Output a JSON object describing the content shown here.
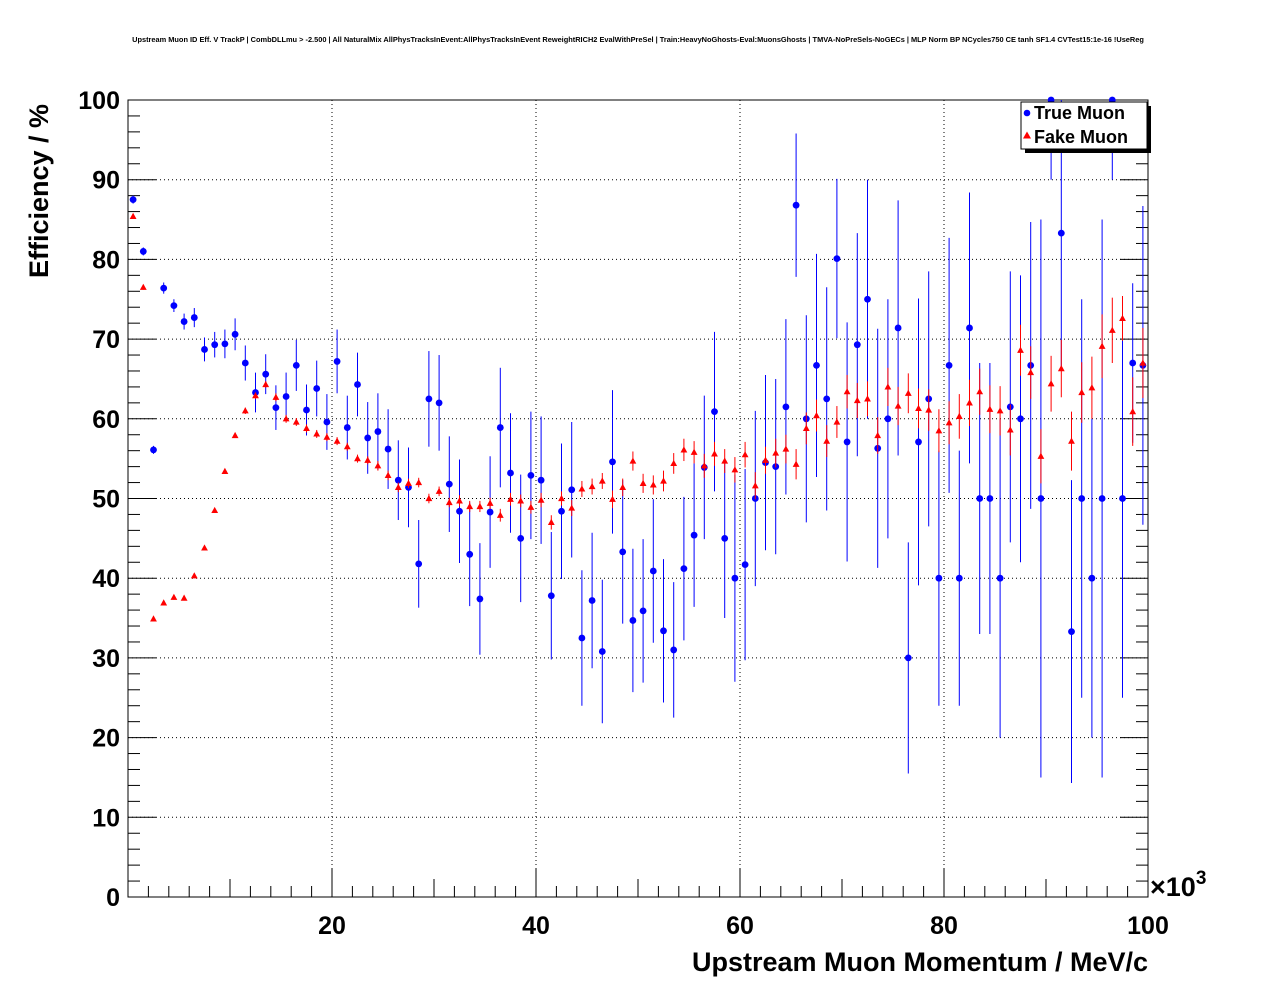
{
  "chart_data": {
    "type": "scatter",
    "title": "Upstream Muon ID Eff. V TrackP | CombDLLmu > -2.500 | All NaturalMix AllPhysTracksInEvent:AllPhysTracksInEvent ReweightRICH2 EvalWithPreSel | Train:HeavyNoGhosts-Eval:MuonsGhosts | TMVA-NoPreSels-NoGECs | MLP Norm BP NCycles750 CE tanh SF1.4 CVTest15:1e-16 !UseReg",
    "xlabel": "Upstream Muon Momentum / MeV/c",
    "ylabel": "Efficiency / %",
    "x_scale_label": "×10",
    "x_scale_exponent": "3",
    "xlim": [
      0,
      100
    ],
    "ylim": [
      0,
      100
    ],
    "x_ticks": [
      20,
      40,
      60,
      80,
      100
    ],
    "y_ticks": [
      0,
      10,
      20,
      30,
      40,
      50,
      60,
      70,
      80,
      90,
      100
    ],
    "x_tick_labels": [
      "20",
      "40",
      "60",
      "80",
      "100"
    ],
    "y_tick_labels": [
      "0",
      "10",
      "20",
      "30",
      "40",
      "50",
      "60",
      "70",
      "80",
      "90",
      "100"
    ],
    "grid": true,
    "legend_position": "top-right",
    "series": [
      {
        "name": "True Muon",
        "color": "#0000ff",
        "marker": "circle",
        "points": [
          [
            0.5,
            87.5,
            0.5
          ],
          [
            1.5,
            81.0,
            0.5
          ],
          [
            2.5,
            56.1,
            0.5
          ],
          [
            3.5,
            76.4,
            0.7
          ],
          [
            4.5,
            74.2,
            0.8
          ],
          [
            5.5,
            72.2,
            1.0
          ],
          [
            6.5,
            72.7,
            1.2
          ],
          [
            7.5,
            68.7,
            1.5
          ],
          [
            8.5,
            69.3,
            1.6
          ],
          [
            9.5,
            69.4,
            1.8
          ],
          [
            10.5,
            70.6,
            2.0
          ],
          [
            11.5,
            67.0,
            2.2
          ],
          [
            12.5,
            63.3,
            2.5
          ],
          [
            13.5,
            65.6,
            2.5
          ],
          [
            14.5,
            61.4,
            2.8
          ],
          [
            15.5,
            62.8,
            3.0
          ],
          [
            16.5,
            66.7,
            3.2
          ],
          [
            17.5,
            61.1,
            3.2
          ],
          [
            18.5,
            63.8,
            3.5
          ],
          [
            19.5,
            59.6,
            3.5
          ],
          [
            20.5,
            67.2,
            4.0
          ],
          [
            21.5,
            58.9,
            4.0
          ],
          [
            22.5,
            64.3,
            4.0
          ],
          [
            23.5,
            57.6,
            4.5
          ],
          [
            24.5,
            58.4,
            4.8
          ],
          [
            25.5,
            56.2,
            5.0
          ],
          [
            26.5,
            52.3,
            5.0
          ],
          [
            27.5,
            51.4,
            5.0
          ],
          [
            28.5,
            41.8,
            5.5
          ],
          [
            29.5,
            62.5,
            6.0
          ],
          [
            30.5,
            62.0,
            6.0
          ],
          [
            31.5,
            51.8,
            6.0
          ],
          [
            32.5,
            48.4,
            6.5
          ],
          [
            33.5,
            43.0,
            6.5
          ],
          [
            34.5,
            37.4,
            7.0
          ],
          [
            35.5,
            48.3,
            7.0
          ],
          [
            36.5,
            58.9,
            7.5
          ],
          [
            37.5,
            53.2,
            7.5
          ],
          [
            38.5,
            45.0,
            8.0
          ],
          [
            39.5,
            52.9,
            8.0
          ],
          [
            40.5,
            52.3,
            8.0
          ],
          [
            41.5,
            37.8,
            8.0
          ],
          [
            42.5,
            48.4,
            8.5
          ],
          [
            43.5,
            51.1,
            8.5
          ],
          [
            44.5,
            32.5,
            8.5
          ],
          [
            45.5,
            37.2,
            8.5
          ],
          [
            46.5,
            30.8,
            9.0
          ],
          [
            47.5,
            54.6,
            9.0
          ],
          [
            48.5,
            43.3,
            9.0
          ],
          [
            49.5,
            34.7,
            9.0
          ],
          [
            50.5,
            35.9,
            9.0
          ],
          [
            51.5,
            40.9,
            9.0
          ],
          [
            52.5,
            33.4,
            9.0
          ],
          [
            53.5,
            31.0,
            8.5
          ],
          [
            54.5,
            41.2,
            9.0
          ],
          [
            55.5,
            45.4,
            9.0
          ],
          [
            56.5,
            53.9,
            9.0
          ],
          [
            57.5,
            60.9,
            10.0
          ],
          [
            58.5,
            45.0,
            10.0
          ],
          [
            59.5,
            40.0,
            13.0
          ],
          [
            60.5,
            41.7,
            12.0
          ],
          [
            61.5,
            50.0,
            11.0
          ],
          [
            62.5,
            54.5,
            11.0
          ],
          [
            63.5,
            54.0,
            11.0
          ],
          [
            64.5,
            61.5,
            11.0
          ],
          [
            65.5,
            86.8,
            9.0
          ],
          [
            66.5,
            60.0,
            13.0
          ],
          [
            67.5,
            66.7,
            14.0
          ],
          [
            68.5,
            62.5,
            14.0
          ],
          [
            69.5,
            80.1,
            10.0
          ],
          [
            70.5,
            57.1,
            15.0
          ],
          [
            71.5,
            69.3,
            14.0
          ],
          [
            72.5,
            75.0,
            15.0
          ],
          [
            73.5,
            56.3,
            15.0
          ],
          [
            74.5,
            60.0,
            15.0
          ],
          [
            75.5,
            71.4,
            16.0
          ],
          [
            76.5,
            30.0,
            14.5
          ],
          [
            77.5,
            57.1,
            18.0
          ],
          [
            78.5,
            62.5,
            16.0
          ],
          [
            79.5,
            40.0,
            16.0
          ],
          [
            80.5,
            66.7,
            16.0
          ],
          [
            81.5,
            40.0,
            16.0
          ],
          [
            82.5,
            71.4,
            17.0
          ],
          [
            83.5,
            50.0,
            17.0
          ],
          [
            84.5,
            50.0,
            17.0
          ],
          [
            85.5,
            40.0,
            20.0
          ],
          [
            86.5,
            61.5,
            17.0
          ],
          [
            87.5,
            60.0,
            18.0
          ],
          [
            88.5,
            66.7,
            18.0
          ],
          [
            89.5,
            50.0,
            35.0
          ],
          [
            90.5,
            100.0,
            10.0
          ],
          [
            91.5,
            83.3,
            17.0
          ],
          [
            92.5,
            33.3,
            19.0
          ],
          [
            93.5,
            50.0,
            25.0
          ],
          [
            94.5,
            40.0,
            20.0
          ],
          [
            95.5,
            50.0,
            35.0
          ],
          [
            96.5,
            100.0,
            10.0
          ],
          [
            97.5,
            50.0,
            25.0
          ],
          [
            98.5,
            67.0,
            10.0
          ],
          [
            99.5,
            66.7,
            20.0
          ]
        ]
      },
      {
        "name": "Fake Muon",
        "color": "#ff0000",
        "marker": "triangle",
        "points": [
          [
            0.5,
            85.4,
            0.3
          ],
          [
            1.5,
            76.5,
            0.3
          ],
          [
            2.5,
            34.9,
            0.3
          ],
          [
            3.5,
            36.9,
            0.3
          ],
          [
            4.5,
            37.6,
            0.3
          ],
          [
            5.5,
            37.5,
            0.3
          ],
          [
            6.5,
            40.3,
            0.3
          ],
          [
            7.5,
            43.8,
            0.3
          ],
          [
            8.5,
            48.5,
            0.3
          ],
          [
            9.5,
            53.4,
            0.3
          ],
          [
            10.5,
            57.9,
            0.3
          ],
          [
            11.5,
            61.0,
            0.4
          ],
          [
            12.5,
            62.9,
            0.4
          ],
          [
            13.5,
            64.3,
            0.4
          ],
          [
            14.5,
            62.7,
            0.5
          ],
          [
            15.5,
            60.0,
            0.5
          ],
          [
            16.5,
            59.6,
            0.5
          ],
          [
            17.5,
            58.8,
            0.5
          ],
          [
            18.5,
            58.1,
            0.5
          ],
          [
            19.5,
            57.7,
            0.5
          ],
          [
            20.5,
            57.2,
            0.5
          ],
          [
            21.5,
            56.5,
            0.5
          ],
          [
            22.5,
            55.0,
            0.5
          ],
          [
            23.5,
            54.8,
            0.5
          ],
          [
            24.5,
            54.1,
            0.6
          ],
          [
            25.5,
            52.9,
            0.6
          ],
          [
            26.5,
            51.4,
            0.6
          ],
          [
            27.5,
            51.9,
            0.6
          ],
          [
            28.5,
            52.0,
            0.6
          ],
          [
            29.5,
            50.0,
            0.6
          ],
          [
            30.5,
            50.9,
            0.6
          ],
          [
            31.5,
            49.5,
            0.6
          ],
          [
            32.5,
            49.7,
            0.7
          ],
          [
            33.5,
            49.0,
            0.7
          ],
          [
            34.5,
            49.0,
            0.7
          ],
          [
            35.5,
            49.4,
            0.7
          ],
          [
            36.5,
            47.9,
            0.8
          ],
          [
            37.5,
            49.9,
            0.8
          ],
          [
            38.5,
            49.7,
            0.8
          ],
          [
            39.5,
            48.9,
            0.8
          ],
          [
            40.5,
            49.8,
            0.9
          ],
          [
            41.5,
            47.0,
            0.9
          ],
          [
            42.5,
            50.0,
            0.9
          ],
          [
            43.5,
            48.8,
            1.0
          ],
          [
            44.5,
            51.2,
            1.0
          ],
          [
            45.5,
            51.5,
            1.0
          ],
          [
            46.5,
            52.2,
            1.0
          ],
          [
            47.5,
            49.9,
            1.1
          ],
          [
            48.5,
            51.4,
            1.1
          ],
          [
            49.5,
            54.7,
            1.2
          ],
          [
            50.5,
            51.9,
            1.2
          ],
          [
            51.5,
            51.7,
            1.2
          ],
          [
            52.5,
            52.2,
            1.3
          ],
          [
            53.5,
            54.4,
            1.3
          ],
          [
            54.5,
            56.1,
            1.4
          ],
          [
            55.5,
            55.8,
            1.4
          ],
          [
            56.5,
            54.1,
            1.5
          ],
          [
            57.5,
            55.6,
            1.5
          ],
          [
            58.5,
            54.7,
            1.5
          ],
          [
            59.5,
            53.6,
            1.6
          ],
          [
            60.5,
            55.5,
            1.6
          ],
          [
            61.5,
            51.6,
            1.7
          ],
          [
            62.5,
            54.8,
            1.7
          ],
          [
            63.5,
            55.7,
            1.8
          ],
          [
            64.5,
            56.2,
            1.8
          ],
          [
            65.5,
            54.3,
            1.9
          ],
          [
            66.5,
            58.8,
            2.0
          ],
          [
            67.5,
            60.4,
            2.0
          ],
          [
            68.5,
            57.2,
            2.0
          ],
          [
            69.5,
            59.6,
            2.0
          ],
          [
            70.5,
            63.4,
            2.1
          ],
          [
            71.5,
            62.3,
            2.2
          ],
          [
            72.5,
            62.5,
            2.2
          ],
          [
            73.5,
            57.9,
            2.3
          ],
          [
            74.5,
            64.0,
            2.4
          ],
          [
            75.5,
            61.6,
            2.4
          ],
          [
            76.5,
            63.2,
            2.5
          ],
          [
            77.5,
            61.3,
            2.5
          ],
          [
            78.5,
            61.1,
            2.6
          ],
          [
            79.5,
            58.5,
            2.7
          ],
          [
            80.5,
            59.5,
            2.7
          ],
          [
            81.5,
            60.3,
            2.8
          ],
          [
            82.5,
            62.0,
            2.9
          ],
          [
            83.5,
            63.4,
            2.9
          ],
          [
            84.5,
            61.2,
            3.0
          ],
          [
            85.5,
            61.0,
            3.1
          ],
          [
            86.5,
            58.6,
            3.2
          ],
          [
            87.5,
            68.6,
            3.2
          ],
          [
            88.5,
            65.8,
            3.3
          ],
          [
            89.5,
            55.3,
            3.4
          ],
          [
            90.5,
            64.4,
            3.5
          ],
          [
            91.5,
            66.3,
            3.6
          ],
          [
            92.5,
            57.2,
            3.7
          ],
          [
            93.5,
            63.3,
            3.8
          ],
          [
            94.5,
            63.9,
            3.9
          ],
          [
            95.5,
            69.1,
            4.0
          ],
          [
            96.5,
            71.1,
            4.1
          ],
          [
            97.5,
            72.6,
            2.8
          ],
          [
            98.5,
            60.9,
            4.3
          ],
          [
            99.5,
            67.0,
            4.4
          ]
        ]
      }
    ]
  }
}
